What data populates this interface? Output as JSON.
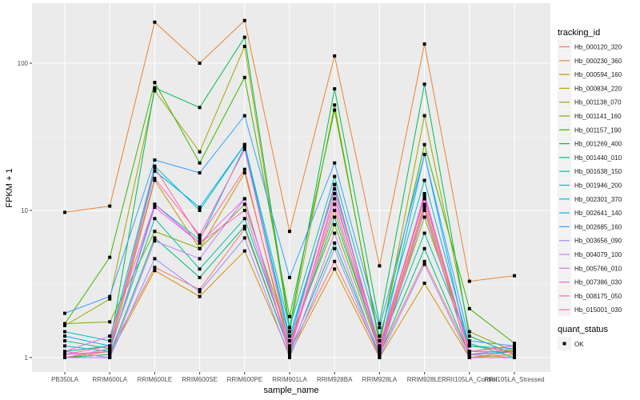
{
  "chart_data": {
    "type": "line",
    "xlabel": "sample_name",
    "ylabel": "FPKM + 1",
    "yscale": "log10",
    "ylim": [
      0.9,
      230
    ],
    "yticks": [
      1,
      10,
      100
    ],
    "ytick_labels": [
      "1",
      "10",
      "100"
    ],
    "grid": true,
    "legend_placement": "right",
    "categories": [
      "PB350LA",
      "RRIM600LA",
      "RRIM600LE",
      "RRIM600SE",
      "RRIM600PE",
      "RRIM901LA",
      "RRIM928BA",
      "RRIM928LA",
      "RRIM928LE",
      "RRII105LA_Control",
      "RRII105LA_Stressed"
    ],
    "legend_title": "tracking_id",
    "legend2_title": "quant_status",
    "legend2_entry": "OK",
    "series": [
      {
        "name": "Hb_000120_320",
        "color": "#F8766D",
        "values": [
          1.05,
          1.1,
          4.1,
          2.9,
          7.5,
          1.1,
          4.5,
          1.05,
          4.5,
          1.05,
          1.0
        ]
      },
      {
        "name": "Hb_000230_360",
        "color": "#EA8331",
        "values": [
          9.7,
          10.7,
          190,
          100,
          195,
          7.2,
          112,
          4.2,
          135,
          3.3,
          3.6
        ]
      },
      {
        "name": "Hb_000594_160",
        "color": "#D89000",
        "values": [
          1.0,
          1.05,
          3.9,
          2.6,
          5.3,
          1.05,
          4.0,
          1.0,
          3.2,
          1.0,
          1.05
        ]
      },
      {
        "name": "Hb_000834_220",
        "color": "#C09B00",
        "values": [
          1.0,
          1.1,
          16,
          5.5,
          18,
          1.2,
          10,
          1.1,
          11,
          1.1,
          1.1
        ]
      },
      {
        "name": "Hb_001138_070",
        "color": "#A3A500",
        "values": [
          1.65,
          2.5,
          65,
          25,
          130,
          1.5,
          52,
          1.2,
          44,
          1.5,
          1.1
        ]
      },
      {
        "name": "Hb_001141_160",
        "color": "#7CAE00",
        "values": [
          1.7,
          1.75,
          7.2,
          5.5,
          11,
          1.3,
          8,
          1.1,
          9,
          1.2,
          1.1
        ]
      },
      {
        "name": "Hb_001157_190",
        "color": "#39B600",
        "values": [
          1.7,
          4.8,
          74,
          21,
          80,
          1.9,
          48,
          1.3,
          28,
          2.15,
          1.25
        ]
      },
      {
        "name": "Hb_001269_400",
        "color": "#00BB4E",
        "values": [
          1.1,
          1.2,
          68,
          50,
          150,
          1.6,
          67,
          1.7,
          72,
          1.4,
          1.05
        ]
      },
      {
        "name": "Hb_001440_010",
        "color": "#00BF7D",
        "values": [
          1.0,
          1.05,
          6.5,
          3.5,
          7.8,
          1.1,
          6,
          1.05,
          5.5,
          1.05,
          1.1
        ]
      },
      {
        "name": "Hb_001638_150",
        "color": "#00C1A3",
        "values": [
          1.3,
          1.15,
          8.8,
          4.0,
          8.8,
          1.2,
          9,
          1.15,
          7,
          1.25,
          1.0
        ]
      },
      {
        "name": "Hb_001946_200",
        "color": "#00BFC4",
        "values": [
          1.5,
          1.3,
          20,
          10,
          28,
          1.6,
          17,
          1.4,
          16,
          1.2,
          1.15
        ]
      },
      {
        "name": "Hb_002301_370",
        "color": "#00BAE0",
        "values": [
          1.2,
          1.1,
          11,
          6.3,
          27,
          1.4,
          14,
          1.2,
          12,
          1.1,
          1.2
        ]
      },
      {
        "name": "Hb_002641_140",
        "color": "#00B0F6",
        "values": [
          1.4,
          1.2,
          18.5,
          10.5,
          28,
          1.3,
          15,
          1.1,
          24,
          1.05,
          1.1
        ]
      },
      {
        "name": "Hb_002685_160",
        "color": "#35A2FF",
        "values": [
          2.0,
          2.6,
          22,
          18,
          44,
          3.5,
          21,
          1.6,
          24,
          1.3,
          1.2
        ]
      },
      {
        "name": "Hb_003656_090",
        "color": "#9590FF",
        "values": [
          1.0,
          1.0,
          4.7,
          2.8,
          6.5,
          1.0,
          5.5,
          1.0,
          4.3,
          1.0,
          1.0
        ]
      },
      {
        "name": "Hb_004079_100",
        "color": "#C77CFF",
        "values": [
          1.1,
          1.0,
          6.2,
          4.7,
          12,
          1.05,
          7,
          1.0,
          10,
          1.0,
          1.1
        ]
      },
      {
        "name": "Hb_005766_010",
        "color": "#E76BF3",
        "values": [
          1.05,
          1.1,
          10.5,
          6.0,
          12,
          1.1,
          11,
          1.1,
          13,
          1.05,
          1.15
        ]
      },
      {
        "name": "Hb_007386_030",
        "color": "#FA62DB",
        "values": [
          1.1,
          1.4,
          11,
          6,
          10,
          1.15,
          12,
          1.2,
          12.5,
          1.1,
          1.2
        ]
      },
      {
        "name": "Hb_008175_050",
        "color": "#FF62BC",
        "values": [
          1.05,
          1.2,
          16.5,
          6.8,
          26,
          1.2,
          15,
          1.15,
          12,
          1.1,
          1.2
        ]
      },
      {
        "name": "Hb_015001_030",
        "color": "#FF6C91",
        "values": [
          1.0,
          1.15,
          19.5,
          6.5,
          19,
          1.1,
          13,
          1.05,
          10.5,
          1.0,
          1.1
        ]
      }
    ]
  }
}
